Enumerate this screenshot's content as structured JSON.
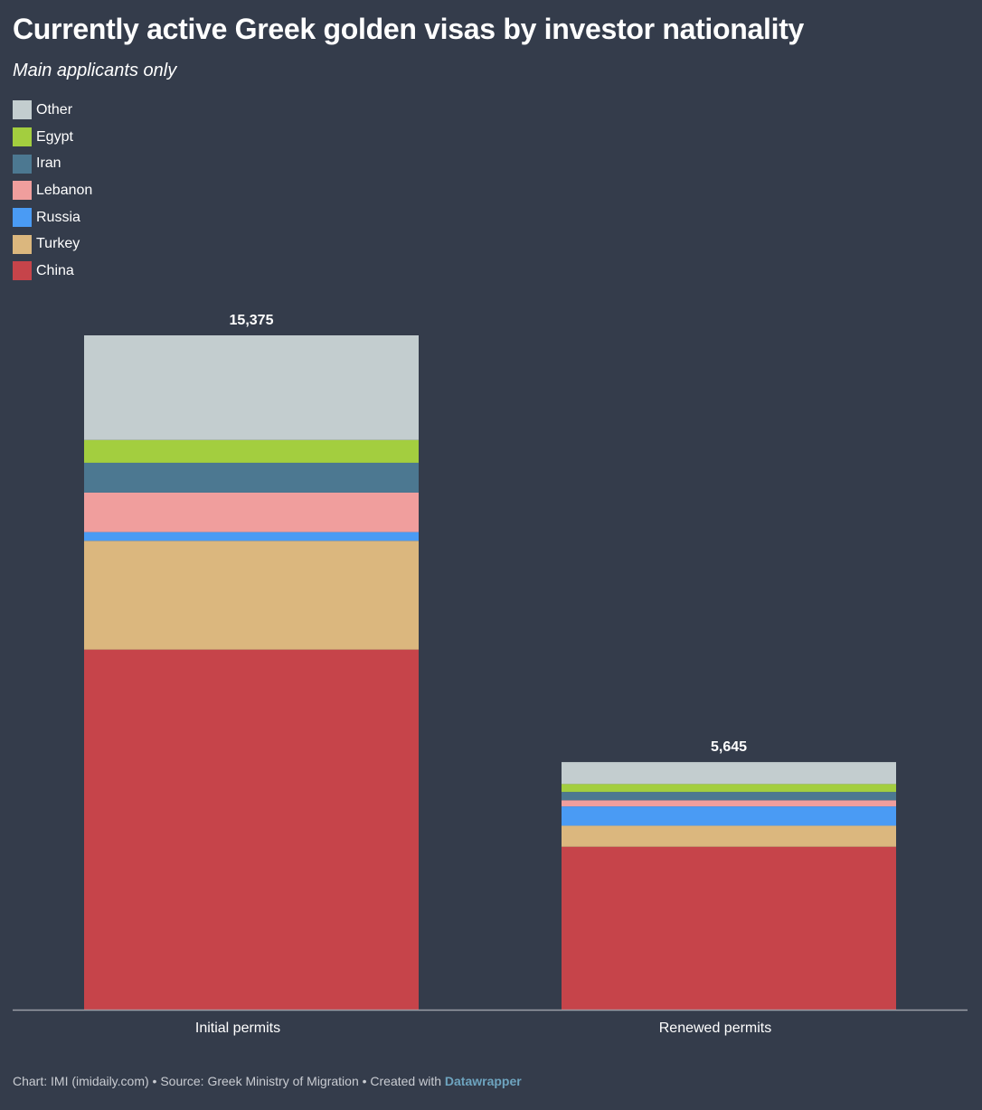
{
  "header": {
    "title": "Currently active Greek golden visas by investor nationality",
    "subtitle": "Main applicants only"
  },
  "legend": [
    {
      "label": "Other",
      "color": "#c3cdcf"
    },
    {
      "label": "Egypt",
      "color": "#a3ce3f"
    },
    {
      "label": "Iran",
      "color": "#4c7891"
    },
    {
      "label": "Lebanon",
      "color": "#f09e9d"
    },
    {
      "label": "Russia",
      "color": "#4a9bf4"
    },
    {
      "label": "Turkey",
      "color": "#dbb77e"
    },
    {
      "label": "China",
      "color": "#c6444a"
    }
  ],
  "chart_data": {
    "type": "bar",
    "stacked": true,
    "categories": [
      "Initial permits",
      "Renewed permits"
    ],
    "totals_labels": [
      "15,375",
      "5,645"
    ],
    "totals": [
      15375,
      5645
    ],
    "series": [
      {
        "name": "China",
        "color": "#c6444a",
        "values": [
          8210,
          3715
        ]
      },
      {
        "name": "Turkey",
        "color": "#dbb77e",
        "values": [
          2480,
          480
        ]
      },
      {
        "name": "Russia",
        "color": "#4a9bf4",
        "values": [
          200,
          440
        ]
      },
      {
        "name": "Lebanon",
        "color": "#f09e9d",
        "values": [
          900,
          140
        ]
      },
      {
        "name": "Iran",
        "color": "#4c7891",
        "values": [
          680,
          190
        ]
      },
      {
        "name": "Egypt",
        "color": "#a3ce3f",
        "values": [
          520,
          180
        ]
      },
      {
        "name": "Other",
        "color": "#c3cdcf",
        "values": [
          2385,
          500
        ]
      }
    ],
    "ylim": [
      0,
      15375
    ],
    "grid": false,
    "legend_position": "top-left"
  },
  "footer": {
    "prefix": "Chart: IMI (imidaily.com) • Source: Greek Ministry of Migration • Created with ",
    "brand": "Datawrapper"
  }
}
